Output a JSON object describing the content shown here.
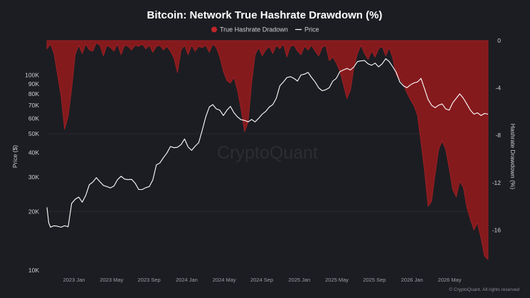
{
  "chart_data": {
    "type": "area+line",
    "title": "Bitcoin: Network True Hashrate Drawdown (%)",
    "watermark": "CryptoQuant",
    "copyright": "© CryptoQuant. All rights reserved",
    "legend": {
      "placement": "top-center",
      "items": [
        {
          "label": "True Hashrate Dradown",
          "symbol": "circle",
          "color": "#c0262b"
        },
        {
          "label": "Price",
          "symbol": "line",
          "color": "#ffffff"
        }
      ]
    },
    "left_axis": {
      "label": "Price ($)",
      "scale": "log",
      "range": [
        10000,
        150000
      ],
      "ticks": [
        {
          "label": "100K",
          "value": 100000
        },
        {
          "label": "90K",
          "value": 90000
        },
        {
          "label": "80K",
          "value": 80000
        },
        {
          "label": "70K",
          "value": 70000
        },
        {
          "label": "60K",
          "value": 60000
        },
        {
          "label": "50K",
          "value": 50000
        },
        {
          "label": "40K",
          "value": 40000
        },
        {
          "label": "30K",
          "value": 30000
        },
        {
          "label": "20K",
          "value": 20000
        },
        {
          "label": "10K",
          "value": 10000
        }
      ]
    },
    "right_axis": {
      "label": "Hashrate Drawdown (%)",
      "scale": "linear",
      "range": [
        -19.4,
        0
      ],
      "ticks": [
        {
          "label": "0",
          "value": 0
        },
        {
          "label": "-4",
          "value": -4
        },
        {
          "label": "-8",
          "value": -8
        },
        {
          "label": "-12",
          "value": -12
        },
        {
          "label": "-16",
          "value": -16
        }
      ]
    },
    "x_axis": {
      "ticks": [
        "2023 Jan",
        "2023 May",
        "2023 Sep",
        "2024 Jan",
        "2024 May",
        "2024 Sep",
        "2025 Jan",
        "2025 May",
        "2025 Sep",
        "2026 Jan",
        "2026 May"
      ]
    },
    "colors": {
      "background": "#1c1d22",
      "drawdown_fill": "#8e1a1d",
      "drawdown_edge": "#a52125",
      "price": "#ffffff",
      "gridline": "#2b2c33"
    },
    "series": [
      {
        "name": "Price",
        "axis": "left",
        "points": [
          [
            0,
            21000
          ],
          [
            0.5,
            17500
          ],
          [
            1,
            16600
          ],
          [
            2,
            16900
          ],
          [
            3,
            16800
          ],
          [
            4,
            16600
          ],
          [
            5,
            16900
          ],
          [
            6,
            16700
          ],
          [
            7,
            22000
          ],
          [
            8,
            23100
          ],
          [
            9,
            23700
          ],
          [
            10,
            22300
          ],
          [
            11,
            24200
          ],
          [
            12,
            27400
          ],
          [
            13,
            28300
          ],
          [
            14,
            29800
          ],
          [
            15,
            28400
          ],
          [
            16,
            27200
          ],
          [
            17,
            26800
          ],
          [
            18,
            26400
          ],
          [
            19,
            27000
          ],
          [
            20,
            29100
          ],
          [
            21,
            30300
          ],
          [
            22,
            29300
          ],
          [
            23,
            29100
          ],
          [
            24,
            29200
          ],
          [
            25,
            27900
          ],
          [
            26,
            25900
          ],
          [
            27,
            25900
          ],
          [
            28,
            26500
          ],
          [
            29,
            26800
          ],
          [
            30,
            29000
          ],
          [
            31,
            34600
          ],
          [
            32,
            35400
          ],
          [
            33,
            37700
          ],
          [
            34,
            39800
          ],
          [
            35,
            43000
          ],
          [
            36,
            42400
          ],
          [
            37,
            42600
          ],
          [
            38,
            44000
          ],
          [
            39,
            47000
          ],
          [
            40,
            42800
          ],
          [
            41,
            41100
          ],
          [
            42,
            43200
          ],
          [
            43,
            45000
          ],
          [
            44,
            52000
          ],
          [
            45,
            61000
          ],
          [
            46,
            68500
          ],
          [
            47,
            70500
          ],
          [
            48,
            67000
          ],
          [
            49,
            66000
          ],
          [
            50,
            62000
          ],
          [
            51,
            66000
          ],
          [
            52,
            69000
          ],
          [
            53,
            64000
          ],
          [
            54,
            61000
          ],
          [
            55,
            59000
          ],
          [
            56,
            58500
          ],
          [
            57,
            57500
          ],
          [
            58,
            59200
          ],
          [
            59,
            57500
          ],
          [
            60,
            60000
          ],
          [
            61,
            63000
          ],
          [
            62,
            65000
          ],
          [
            63,
            68500
          ],
          [
            64,
            70500
          ],
          [
            65,
            76000
          ],
          [
            66,
            88000
          ],
          [
            67,
            92000
          ],
          [
            68,
            97000
          ],
          [
            69,
            98000
          ],
          [
            70,
            96000
          ],
          [
            71,
            93000
          ],
          [
            72,
            100000
          ],
          [
            73,
            101000
          ],
          [
            74,
            103000
          ],
          [
            75,
            97000
          ],
          [
            76,
            92000
          ],
          [
            77,
            86000
          ],
          [
            78,
            83000
          ],
          [
            79,
            84000
          ],
          [
            80,
            86000
          ],
          [
            81,
            93000
          ],
          [
            82,
            96000
          ],
          [
            83,
            104000
          ],
          [
            84,
            106000
          ],
          [
            85,
            108000
          ],
          [
            86,
            106000
          ],
          [
            87,
            110000
          ],
          [
            88,
            117000
          ],
          [
            89,
            118000
          ],
          [
            90,
            118500
          ],
          [
            91,
            114000
          ],
          [
            92,
            112000
          ],
          [
            93,
            115000
          ],
          [
            94,
            110000
          ],
          [
            95,
            114000
          ],
          [
            96,
            121000
          ],
          [
            97,
            117000
          ],
          [
            98,
            110000
          ],
          [
            99,
            103000
          ],
          [
            100,
            92000
          ],
          [
            101,
            88000
          ],
          [
            102,
            86000
          ],
          [
            103,
            89000
          ],
          [
            104,
            91000
          ],
          [
            105,
            92000
          ],
          [
            106,
            96000
          ],
          [
            107,
            85000
          ],
          [
            108,
            75000
          ],
          [
            109,
            70000
          ],
          [
            110,
            68000
          ],
          [
            111,
            70000
          ],
          [
            112,
            71000
          ],
          [
            113,
            67000
          ],
          [
            114,
            66000
          ],
          [
            115,
            72000
          ],
          [
            116,
            76000
          ],
          [
            117,
            80000
          ],
          [
            118,
            76000
          ],
          [
            119,
            71000
          ],
          [
            120,
            66000
          ],
          [
            121,
            63000
          ],
          [
            122,
            64000
          ],
          [
            123,
            62000
          ],
          [
            124,
            63500
          ],
          [
            125,
            63000
          ]
        ]
      },
      {
        "name": "True Hashrate Dradown",
        "axis": "right",
        "points": [
          [
            0,
            -0.7
          ],
          [
            1,
            -0.3
          ],
          [
            2,
            -1.1
          ],
          [
            3,
            -2.9
          ],
          [
            4,
            -4.7
          ],
          [
            5,
            -7.5
          ],
          [
            6,
            -6.4
          ],
          [
            7,
            -4.1
          ],
          [
            8,
            -1.2
          ],
          [
            9,
            -0.4
          ],
          [
            10,
            -1.1
          ],
          [
            11,
            -0.3
          ],
          [
            12,
            -0.8
          ],
          [
            13,
            -0.9
          ],
          [
            14,
            -0.2
          ],
          [
            15,
            -0.4
          ],
          [
            16,
            -1.3
          ],
          [
            17,
            -0.4
          ],
          [
            18,
            -0.6
          ],
          [
            19,
            -0.9
          ],
          [
            20,
            -0.3
          ],
          [
            21,
            -1.2
          ],
          [
            22,
            -0.4
          ],
          [
            23,
            -0.5
          ],
          [
            24,
            -0.8
          ],
          [
            25,
            -0.4
          ],
          [
            26,
            -0.5
          ],
          [
            27,
            -0.3
          ],
          [
            28,
            -0.7
          ],
          [
            29,
            -0.4
          ],
          [
            30,
            -1.0
          ],
          [
            31,
            -0.5
          ],
          [
            32,
            -0.4
          ],
          [
            33,
            -0.8
          ],
          [
            34,
            -0.5
          ],
          [
            35,
            -0.9
          ],
          [
            36,
            -1.5
          ],
          [
            37,
            -2.7
          ],
          [
            38,
            -0.8
          ],
          [
            39,
            -0.4
          ],
          [
            40,
            -1.2
          ],
          [
            41,
            -0.4
          ],
          [
            42,
            -0.9
          ],
          [
            43,
            -0.5
          ],
          [
            44,
            -0.6
          ],
          [
            45,
            -0.4
          ],
          [
            46,
            -1.0
          ],
          [
            47,
            -0.3
          ],
          [
            48,
            -0.6
          ],
          [
            49,
            -1.4
          ],
          [
            50,
            -2.6
          ],
          [
            51,
            -3.4
          ],
          [
            52,
            -3.6
          ],
          [
            53,
            -3.1
          ],
          [
            54,
            -4.2
          ],
          [
            55,
            -5.8
          ],
          [
            56,
            -7.7
          ],
          [
            57,
            -6.9
          ],
          [
            58,
            -3.6
          ],
          [
            59,
            -1.2
          ],
          [
            60,
            -0.6
          ],
          [
            61,
            -1.3
          ],
          [
            62,
            -0.8
          ],
          [
            63,
            -0.5
          ],
          [
            64,
            -1.1
          ],
          [
            65,
            -0.4
          ],
          [
            66,
            -0.7
          ],
          [
            67,
            -0.3
          ],
          [
            68,
            -1.4
          ],
          [
            69,
            -0.5
          ],
          [
            70,
            -0.4
          ],
          [
            71,
            -0.9
          ],
          [
            72,
            -1.2
          ],
          [
            73,
            -0.5
          ],
          [
            74,
            -0.8
          ],
          [
            75,
            -0.4
          ],
          [
            76,
            -0.9
          ],
          [
            77,
            -1.3
          ],
          [
            78,
            -0.6
          ],
          [
            79,
            -0.4
          ],
          [
            80,
            -1.7
          ],
          [
            81,
            -1.4
          ],
          [
            82,
            -1.9
          ],
          [
            83,
            -2.6
          ],
          [
            84,
            -3.7
          ],
          [
            85,
            -4.9
          ],
          [
            86,
            -4.2
          ],
          [
            87,
            -2.3
          ],
          [
            88,
            -1.1
          ],
          [
            89,
            -0.4
          ],
          [
            90,
            -1.1
          ],
          [
            91,
            -1.6
          ],
          [
            92,
            -0.9
          ],
          [
            93,
            -1.4
          ],
          [
            94,
            -0.7
          ],
          [
            95,
            -0.5
          ],
          [
            96,
            -1.3
          ],
          [
            97,
            -0.6
          ],
          [
            98,
            -1.5
          ],
          [
            99,
            -2.9
          ],
          [
            100,
            -3.3
          ],
          [
            101,
            -3.7
          ],
          [
            102,
            -4.4
          ],
          [
            103,
            -5.0
          ],
          [
            104,
            -5.5
          ],
          [
            105,
            -6.3
          ],
          [
            106,
            -8.6
          ],
          [
            107,
            -11.0
          ],
          [
            108,
            -14.0
          ],
          [
            109,
            -13.6
          ],
          [
            110,
            -11.3
          ],
          [
            111,
            -9.2
          ],
          [
            112,
            -8.5
          ],
          [
            113,
            -9.2
          ],
          [
            114,
            -10.8
          ],
          [
            115,
            -12.6
          ],
          [
            116,
            -13.2
          ],
          [
            117,
            -11.9
          ],
          [
            118,
            -12.4
          ],
          [
            119,
            -14.1
          ],
          [
            120,
            -15.1
          ],
          [
            121,
            -16.0
          ],
          [
            122,
            -15.4
          ],
          [
            123,
            -16.7
          ],
          [
            124,
            -18.2
          ],
          [
            125,
            -18.5
          ]
        ]
      }
    ]
  }
}
